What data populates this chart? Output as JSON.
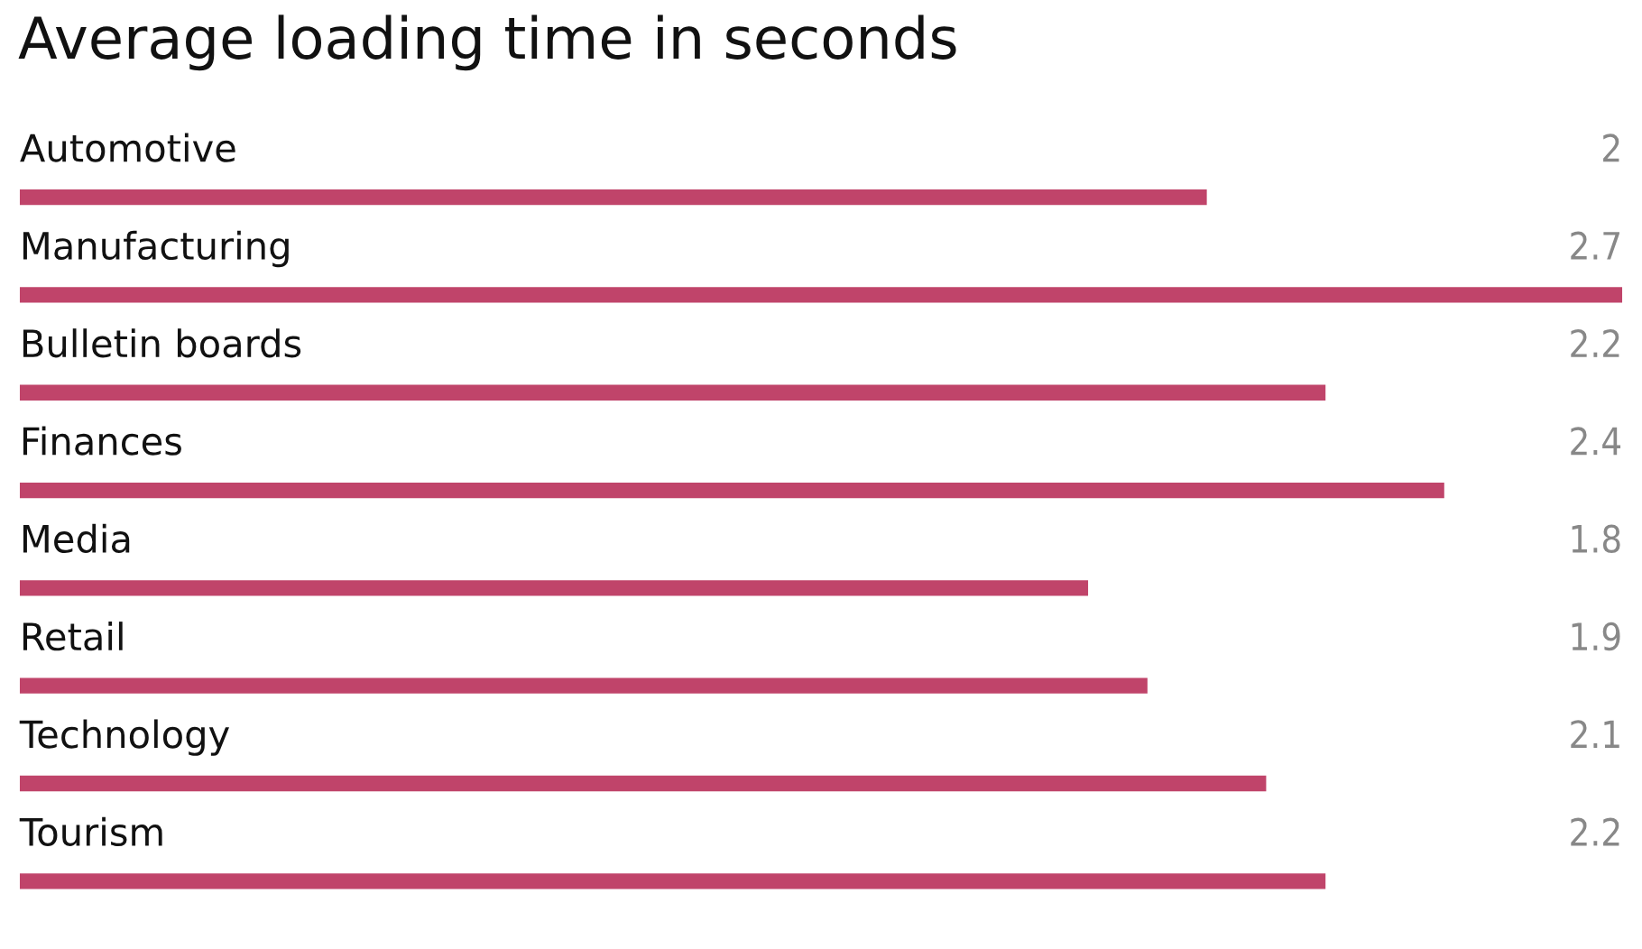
{
  "chart_data": {
    "type": "bar",
    "orientation": "horizontal",
    "title": "Average loading time in seconds",
    "categories": [
      "Automotive",
      "Manufacturing",
      "Bulletin boards",
      "Finances",
      "Media",
      "Retail",
      "Technology",
      "Tourism"
    ],
    "values": [
      2,
      2.7,
      2.2,
      2.4,
      1.8,
      1.9,
      2.1,
      2.2
    ],
    "color": "#c0446a",
    "data_labels": true
  }
}
